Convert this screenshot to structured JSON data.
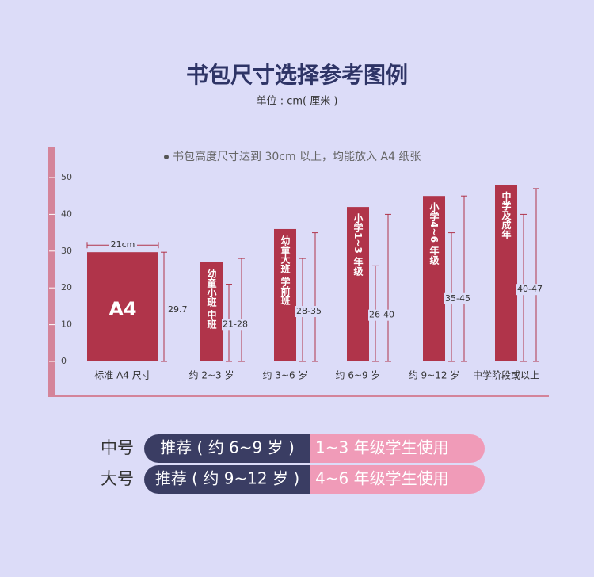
{
  "chart_data": {
    "type": "bar",
    "title": "书包尺寸选择参考图例",
    "subtitle": "单位 : cm( 厘米 )",
    "note": "书包高度尺寸达到 30cm 以上，均能放入 A4 纸张",
    "width_label": "21cm",
    "categories": [
      "标准 A4 尺寸",
      "约 2~3 岁",
      "约 3~6 岁",
      "约 6~9 岁",
      "约 9~12 岁",
      "中学阶段或以上"
    ],
    "bar_labels": [
      "A4",
      "幼童小班 中班",
      "幼童大班 学前班",
      "小学1~3 年级",
      "小学4~6 年级",
      "中学及成年"
    ],
    "values": [
      29.7,
      27,
      36,
      42,
      45,
      48
    ],
    "range_low": [
      null,
      21,
      28,
      26,
      35,
      40
    ],
    "range_high": [
      29.7,
      28,
      35,
      40,
      45,
      47
    ],
    "range_labels": [
      "29.7",
      "21-28",
      "28-35",
      "26-40",
      "35-45",
      "40-47"
    ],
    "color": "#b0344a",
    "ylim": [
      0,
      50
    ],
    "yticks": [
      0,
      10,
      20,
      30,
      40,
      50
    ]
  },
  "recommendations": [
    {
      "size": "中号",
      "age": "推荐 ( 约 6~9 岁 )",
      "grade": "1~3 年级学生使用"
    },
    {
      "size": "大号",
      "age": "推荐 ( 约 9~12 岁 )",
      "grade": "4~6 年级学生使用"
    }
  ]
}
